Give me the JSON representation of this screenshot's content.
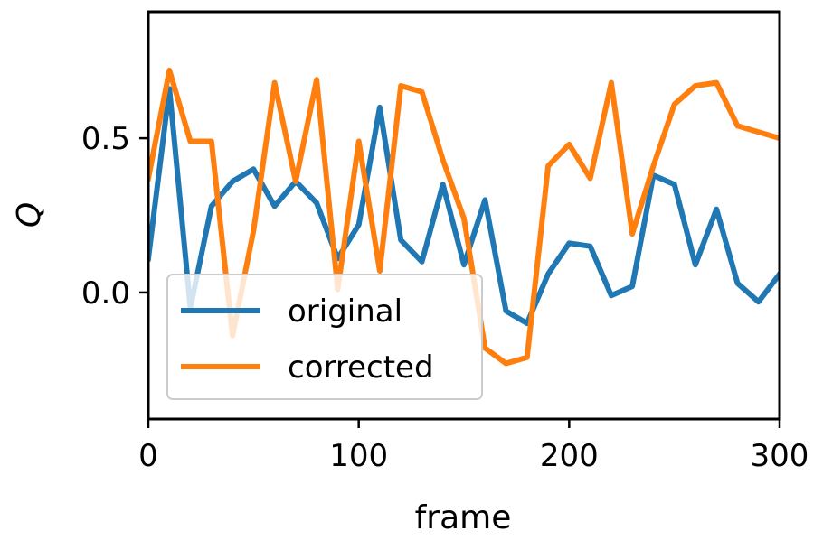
{
  "chart_data": {
    "type": "line",
    "xlabel": "frame",
    "ylabel": "Q",
    "xlim": [
      0,
      300
    ],
    "ylim": [
      -0.41,
      0.91
    ],
    "xticks": [
      0,
      100,
      200,
      300
    ],
    "yticks": [
      0.0,
      0.5
    ],
    "ytick_labels": [
      "0.0",
      "0.5"
    ],
    "grid": false,
    "legend_position": "lower-left",
    "x": [
      0,
      10,
      20,
      30,
      40,
      50,
      60,
      70,
      80,
      90,
      100,
      110,
      120,
      130,
      140,
      150,
      160,
      170,
      180,
      190,
      200,
      210,
      220,
      230,
      240,
      250,
      260,
      270,
      280,
      290,
      300
    ],
    "series": [
      {
        "name": "original",
        "color": "#1f77b4",
        "values": [
          0.11,
          0.66,
          -0.05,
          0.28,
          0.36,
          0.4,
          0.28,
          0.36,
          0.29,
          0.11,
          0.22,
          0.6,
          0.17,
          0.1,
          0.35,
          0.09,
          0.3,
          -0.06,
          -0.1,
          0.06,
          0.16,
          0.15,
          -0.01,
          0.02,
          0.38,
          0.35,
          0.09,
          0.27,
          0.03,
          -0.03,
          0.06
        ]
      },
      {
        "name": "corrected",
        "color": "#ff7f0e",
        "values": [
          0.37,
          0.72,
          0.49,
          0.49,
          -0.14,
          0.2,
          0.68,
          0.36,
          0.69,
          0.01,
          0.49,
          0.07,
          0.67,
          0.65,
          0.43,
          0.24,
          -0.18,
          -0.23,
          -0.21,
          0.41,
          0.48,
          0.37,
          0.68,
          0.19,
          0.41,
          0.61,
          0.67,
          0.68,
          0.54,
          0.52,
          0.5
        ]
      }
    ]
  }
}
